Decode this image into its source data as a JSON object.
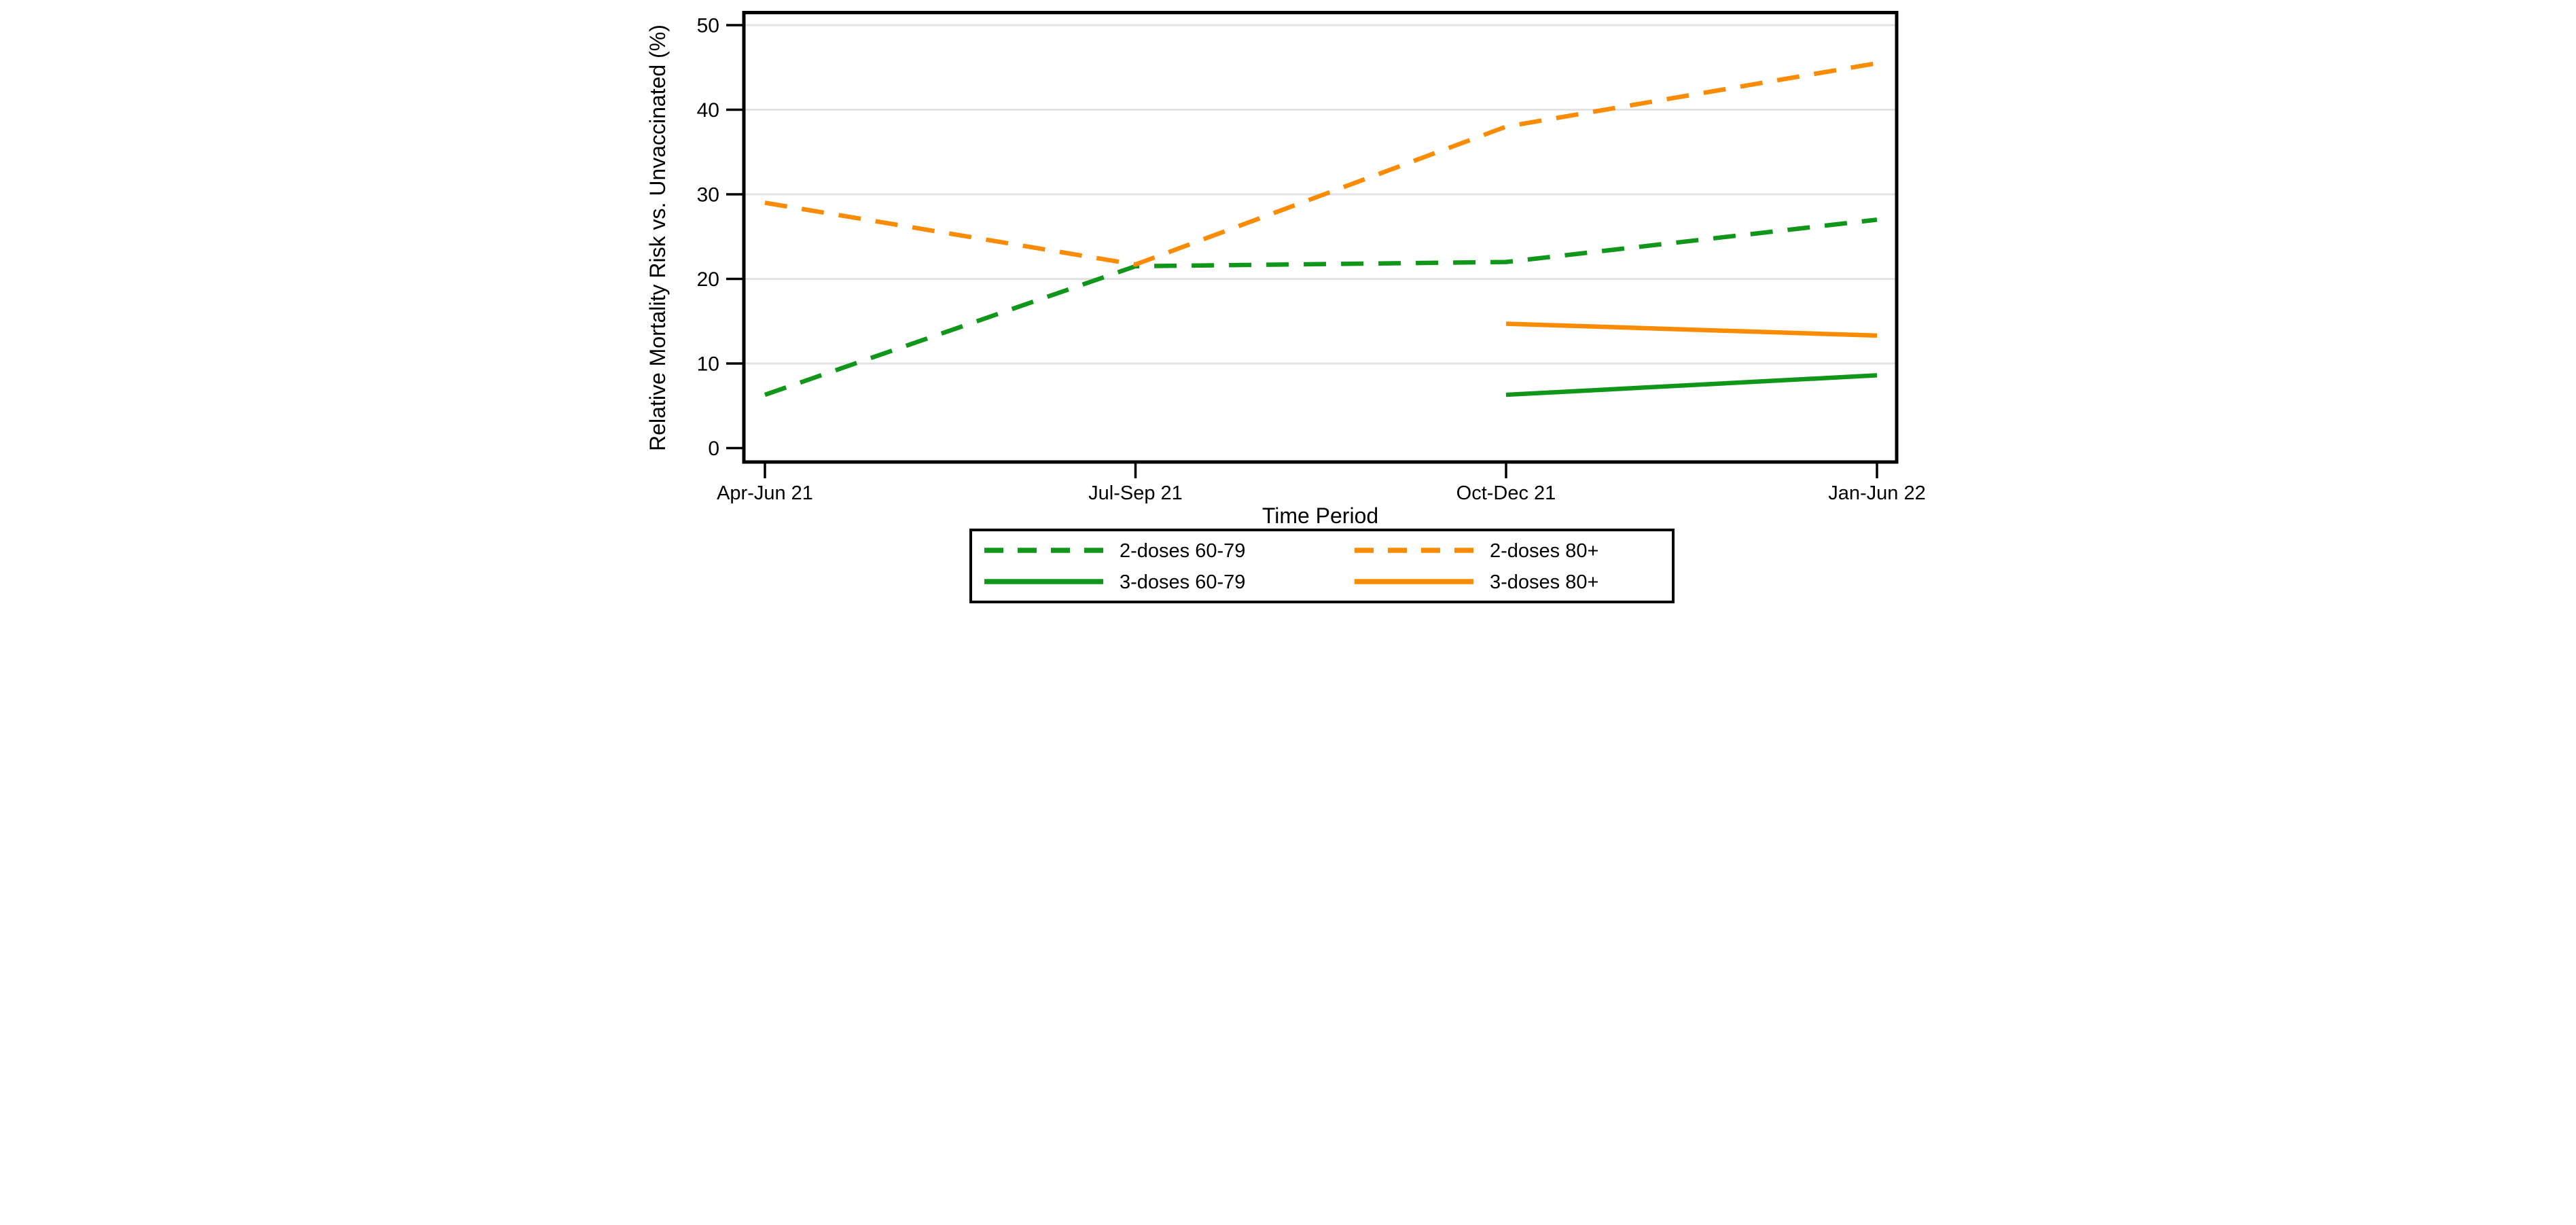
{
  "figure": {
    "background": "#ffffff",
    "accent_colors": {
      "green": "#109618",
      "orange": "#fb8b00",
      "gridline": "#e3e3e3",
      "axis": "#000000"
    }
  },
  "chart_data": {
    "type": "line",
    "title": "",
    "xlabel": "Time Period",
    "ylabel": "Relative Mortality Risk vs. Unvaccinated (%)",
    "categories": [
      "Apr-Jun 21",
      "Jul-Sep 21",
      "Oct-Dec 21",
      "Jan-Jun 22"
    ],
    "y_ticks": [
      0,
      10,
      20,
      30,
      40,
      50
    ],
    "ylim": [
      0,
      50
    ],
    "grid": {
      "horizontal": true,
      "color": "#e3e3e3",
      "at": [
        10,
        20,
        30,
        40,
        50
      ]
    },
    "series": [
      {
        "name": "2-doses 60-79",
        "color": "#109618",
        "style": "dashed",
        "values": [
          6.3,
          21.5,
          22.0,
          27.0
        ]
      },
      {
        "name": "2-doses 80+",
        "color": "#fb8b00",
        "style": "dashed",
        "values": [
          29.0,
          21.7,
          38.0,
          45.5
        ]
      },
      {
        "name": "3-doses 60-79",
        "color": "#109618",
        "style": "solid",
        "values": [
          null,
          null,
          6.3,
          8.6
        ]
      },
      {
        "name": "3-doses 80+",
        "color": "#fb8b00",
        "style": "solid",
        "values": [
          null,
          null,
          14.7,
          13.3
        ]
      }
    ],
    "legend": {
      "position": "bottom",
      "columns": 2,
      "border": true,
      "entries": [
        "2-doses 60-79",
        "2-doses 80+",
        "3-doses 60-79",
        "3-doses 80+"
      ]
    }
  }
}
